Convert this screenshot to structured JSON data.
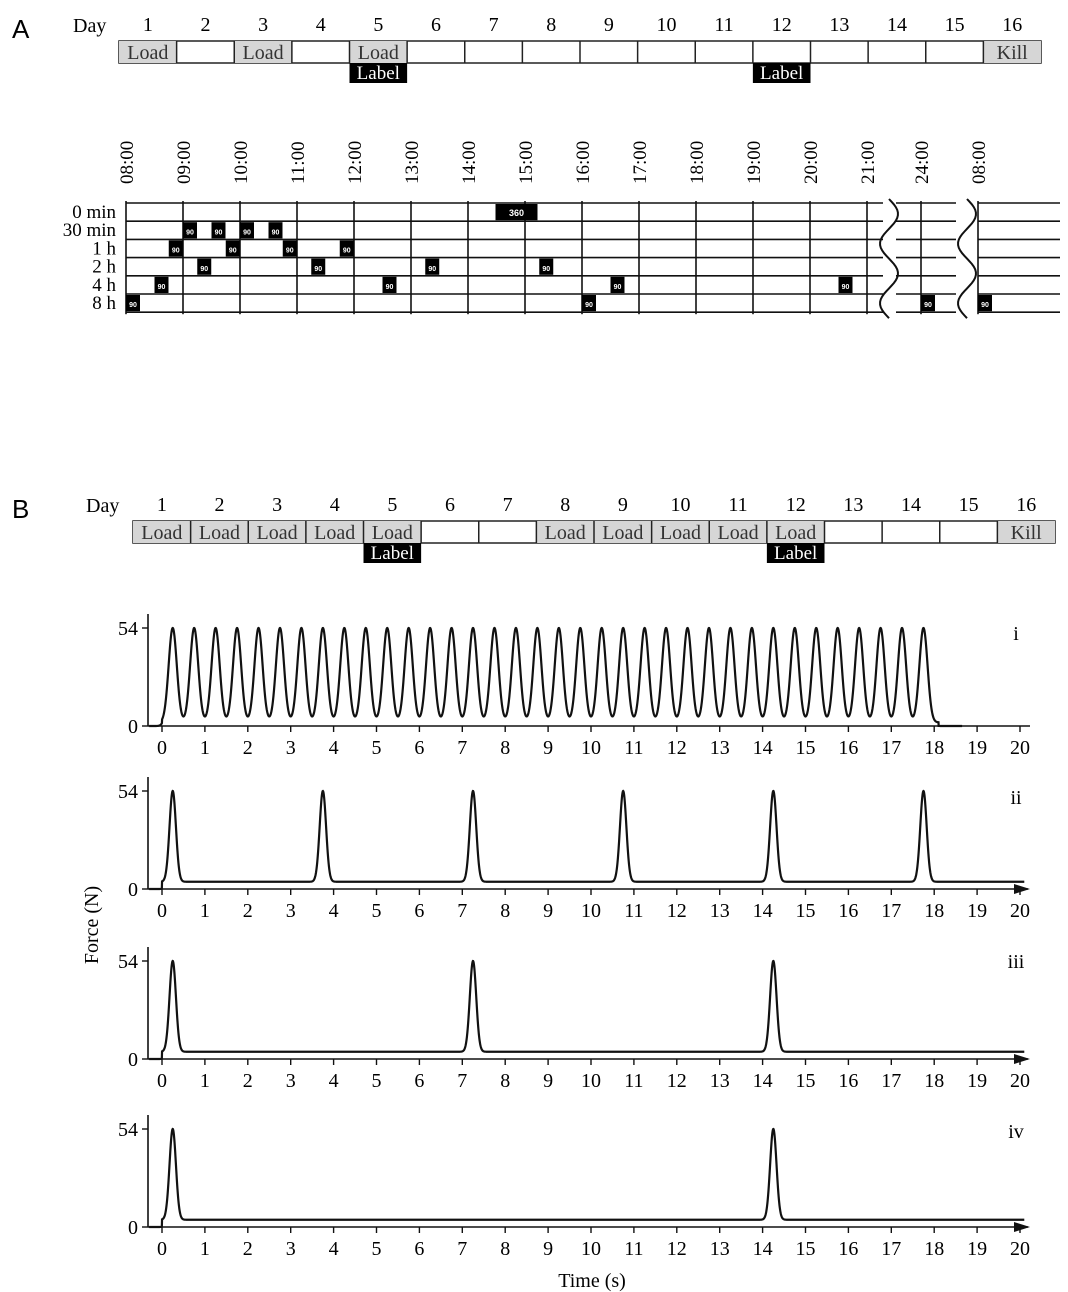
{
  "panelA": {
    "letter": "A",
    "day_label": "Day",
    "days": [
      "1",
      "2",
      "3",
      "4",
      "5",
      "6",
      "7",
      "8",
      "9",
      "10",
      "11",
      "12",
      "13",
      "14",
      "15",
      "16"
    ],
    "cells": [
      {
        "day": 1,
        "text": "Load",
        "style": "gray"
      },
      {
        "day": 3,
        "text": "Load",
        "style": "gray"
      },
      {
        "day": 5,
        "text": "Load",
        "style": "gray"
      },
      {
        "day": 16,
        "text": "Kill",
        "style": "gray"
      }
    ],
    "labels": [
      {
        "day": 5,
        "text": "Label"
      },
      {
        "day": 12,
        "text": "Label"
      }
    ],
    "times": [
      "08:00",
      "09:00",
      "10:00",
      "11:00",
      "12:00",
      "13:00",
      "14:00",
      "15:00",
      "16:00",
      "17:00",
      "18:00",
      "19:00",
      "20:00",
      "21:00",
      "24:00",
      "08:00"
    ],
    "rows": [
      "0 min",
      "30 min",
      "1 h",
      "2 h",
      "4 h",
      "8 h"
    ],
    "blocks": [
      {
        "row": 0,
        "hour": 14.5,
        "text": "360",
        "wide": true
      },
      {
        "row": 1,
        "hour": 9.0,
        "text": "90"
      },
      {
        "row": 1,
        "hour": 9.5,
        "text": "90"
      },
      {
        "row": 1,
        "hour": 10.0,
        "text": "90"
      },
      {
        "row": 1,
        "hour": 10.5,
        "text": "90"
      },
      {
        "row": 2,
        "hour": 8.75,
        "text": "90"
      },
      {
        "row": 2,
        "hour": 9.75,
        "text": "90"
      },
      {
        "row": 2,
        "hour": 10.75,
        "text": "90"
      },
      {
        "row": 2,
        "hour": 11.75,
        "text": "90"
      },
      {
        "row": 3,
        "hour": 9.25,
        "text": "90"
      },
      {
        "row": 3,
        "hour": 11.25,
        "text": "90"
      },
      {
        "row": 3,
        "hour": 13.25,
        "text": "90"
      },
      {
        "row": 3,
        "hour": 15.25,
        "text": "90"
      },
      {
        "row": 4,
        "hour": 8.5,
        "text": "90"
      },
      {
        "row": 4,
        "hour": 12.5,
        "text": "90"
      },
      {
        "row": 4,
        "hour": 16.5,
        "text": "90"
      },
      {
        "row": 4,
        "hour": 20.5,
        "text": "90"
      },
      {
        "row": 5,
        "hour": 8.0,
        "text": "90"
      },
      {
        "row": 5,
        "hour": 16.0,
        "text": "90"
      },
      {
        "row": 5,
        "hour": 24.0,
        "text": "90"
      },
      {
        "row": 5,
        "hour": 32.0,
        "text": "90"
      }
    ]
  },
  "panelB": {
    "letter": "B",
    "day_label": "Day",
    "days": [
      "1",
      "2",
      "3",
      "4",
      "5",
      "6",
      "7",
      "8",
      "9",
      "10",
      "11",
      "12",
      "13",
      "14",
      "15",
      "16"
    ],
    "cells": [
      {
        "day": 1,
        "text": "Load",
        "style": "gray"
      },
      {
        "day": 2,
        "text": "Load",
        "style": "gray"
      },
      {
        "day": 3,
        "text": "Load",
        "style": "gray"
      },
      {
        "day": 4,
        "text": "Load",
        "style": "gray"
      },
      {
        "day": 5,
        "text": "Load",
        "style": "gray"
      },
      {
        "day": 8,
        "text": "Load",
        "style": "gray"
      },
      {
        "day": 9,
        "text": "Load",
        "style": "gray"
      },
      {
        "day": 10,
        "text": "Load",
        "style": "gray"
      },
      {
        "day": 11,
        "text": "Load",
        "style": "gray"
      },
      {
        "day": 12,
        "text": "Load",
        "style": "gray"
      },
      {
        "day": 16,
        "text": "Kill",
        "style": "gray"
      }
    ],
    "labels": [
      {
        "day": 5,
        "text": "Label"
      },
      {
        "day": 12,
        "text": "Label"
      }
    ]
  },
  "chart_data": [
    {
      "type": "line",
      "panel": "i",
      "ylabel": "Force (N)",
      "xlabel": "Time (s)",
      "yticks": [
        0,
        54
      ],
      "xticks": [
        0,
        1,
        2,
        3,
        4,
        5,
        6,
        7,
        8,
        9,
        10,
        11,
        12,
        13,
        14,
        15,
        16,
        17,
        18,
        19,
        20
      ],
      "xlim": [
        0,
        20
      ],
      "ylim": [
        0,
        54
      ],
      "peak_force": 54,
      "peak_times": [
        0.25,
        0.75,
        1.25,
        1.75,
        2.25,
        2.75,
        3.25,
        3.75,
        4.25,
        4.75,
        5.25,
        5.75,
        6.25,
        6.75,
        7.25,
        7.75,
        8.25,
        8.75,
        9.25,
        9.75,
        10.25,
        10.75,
        11.25,
        11.75,
        12.25,
        12.75,
        13.25,
        13.75,
        14.25,
        14.75,
        15.25,
        15.75,
        16.25,
        16.75,
        17.25,
        17.75
      ],
      "baseline": 2,
      "arrow": false
    },
    {
      "type": "line",
      "panel": "ii",
      "yticks": [
        0,
        54
      ],
      "xticks": [
        0,
        1,
        2,
        3,
        4,
        5,
        6,
        7,
        8,
        9,
        10,
        11,
        12,
        13,
        14,
        15,
        16,
        17,
        18,
        19,
        20
      ],
      "xlim": [
        0,
        20
      ],
      "ylim": [
        0,
        54
      ],
      "peak_force": 54,
      "peak_times": [
        0.25,
        3.75,
        7.25,
        10.75,
        14.25,
        17.75
      ],
      "baseline": 4,
      "arrow": true
    },
    {
      "type": "line",
      "panel": "iii",
      "yticks": [
        0,
        54
      ],
      "xticks": [
        0,
        1,
        2,
        3,
        4,
        5,
        6,
        7,
        8,
        9,
        10,
        11,
        12,
        13,
        14,
        15,
        16,
        17,
        18,
        19,
        20
      ],
      "xlim": [
        0,
        20
      ],
      "ylim": [
        0,
        54
      ],
      "peak_force": 54,
      "peak_times": [
        0.25,
        7.25,
        14.25
      ],
      "baseline": 4,
      "arrow": true
    },
    {
      "type": "line",
      "panel": "iv",
      "yticks": [
        0,
        54
      ],
      "xticks": [
        0,
        1,
        2,
        3,
        4,
        5,
        6,
        7,
        8,
        9,
        10,
        11,
        12,
        13,
        14,
        15,
        16,
        17,
        18,
        19,
        20
      ],
      "xlim": [
        0,
        20
      ],
      "ylim": [
        0,
        54
      ],
      "peak_force": 54,
      "peak_times": [
        0.25,
        14.25
      ],
      "baseline": 4,
      "arrow": true
    }
  ]
}
